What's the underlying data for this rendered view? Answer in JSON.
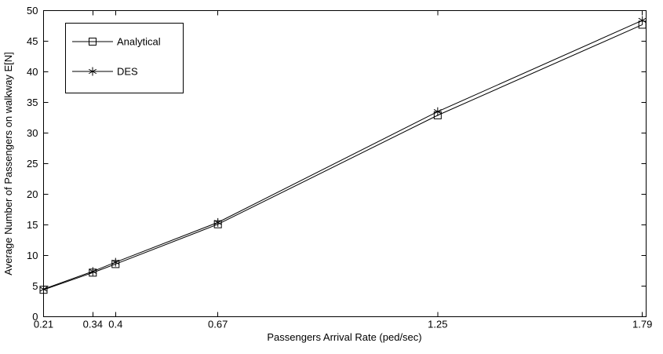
{
  "chart_data": {
    "type": "line",
    "title": "",
    "xlabel": "Passengers Arrival Rate (ped/sec)",
    "ylabel": "Average Number of Passengers on walkway E[N]",
    "x": [
      0.21,
      0.34,
      0.4,
      0.67,
      1.25,
      1.79
    ],
    "series": [
      {
        "name": "Analytical",
        "marker": "square",
        "values": [
          4.4,
          7.2,
          8.6,
          15.1,
          32.9,
          47.7
        ]
      },
      {
        "name": "DES",
        "marker": "asterisk",
        "values": [
          4.5,
          7.4,
          8.9,
          15.4,
          33.5,
          48.4
        ]
      }
    ],
    "xlim": [
      0.21,
      1.8
    ],
    "ylim": [
      0,
      50
    ],
    "x_ticks": [
      0.21,
      0.34,
      0.4,
      0.67,
      1.25,
      1.79
    ],
    "x_tick_labels": [
      "0.21",
      "0.34",
      "0.4",
      "0.67",
      "1.25",
      "1.79"
    ],
    "y_ticks": [
      0,
      5,
      10,
      15,
      20,
      25,
      30,
      35,
      40,
      45,
      50
    ],
    "y_tick_labels": [
      "0",
      "5",
      "10",
      "15",
      "20",
      "25",
      "30",
      "35",
      "40",
      "45",
      "50"
    ],
    "grid": false,
    "legend_position": "top-left",
    "colors": {
      "series": "#000000",
      "axes": "#000000",
      "text": "#000000",
      "background": "#ffffff"
    }
  }
}
